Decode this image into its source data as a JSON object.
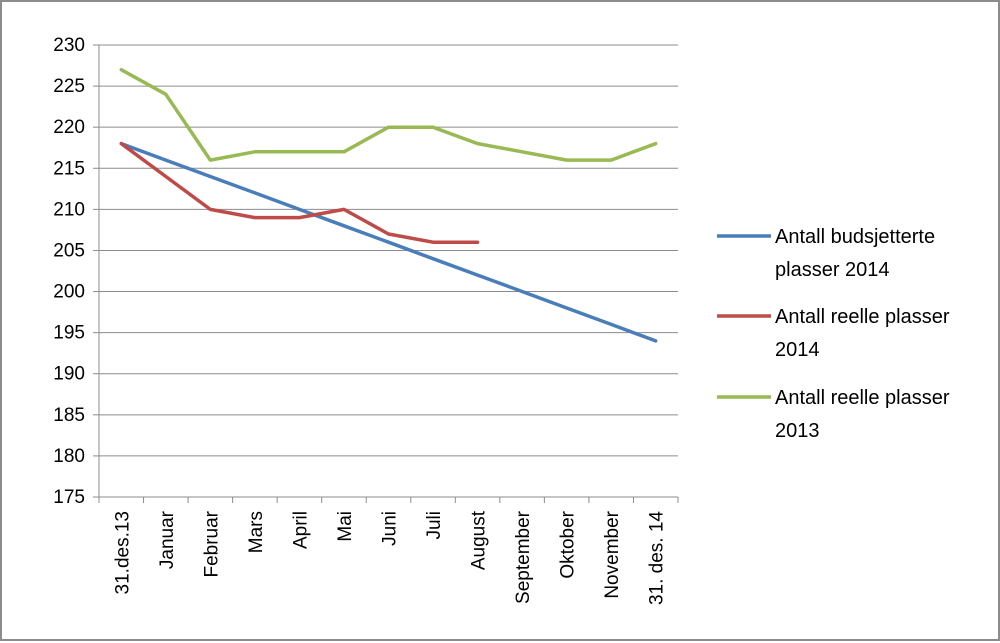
{
  "chart_data": {
    "type": "line",
    "title": "",
    "xlabel": "",
    "ylabel": "",
    "categories": [
      "31.des.13",
      "Januar",
      "Februar",
      "Mars",
      "April",
      "Mai",
      "Juni",
      "Juli",
      "August",
      "September",
      "Oktober",
      "November",
      "31. des. 14"
    ],
    "ylim": [
      175,
      230
    ],
    "yticks": [
      175,
      180,
      185,
      190,
      195,
      200,
      205,
      210,
      215,
      220,
      225,
      230
    ],
    "grid": true,
    "legend_position": "right",
    "series": [
      {
        "name": "Antall budsjetterte plasser  2014",
        "legend_lines": [
          "Antall budsjetterte",
          "plasser  2014"
        ],
        "color": "#4a7ebb",
        "values": [
          218,
          216,
          214,
          212,
          210,
          208,
          206,
          204,
          202,
          200,
          198,
          196,
          194
        ]
      },
      {
        "name": "Antall reelle plasser 2014",
        "legend_lines": [
          "Antall reelle plasser",
          "2014"
        ],
        "color": "#be4b48",
        "values": [
          218,
          214,
          210,
          209,
          209,
          210,
          207,
          206,
          206,
          null,
          null,
          null,
          null
        ]
      },
      {
        "name": "Antall reelle plasser 2013",
        "legend_lines": [
          "Antall reelle plasser",
          "2013"
        ],
        "color": "#98b954",
        "values": [
          227,
          224,
          216,
          217,
          217,
          217,
          220,
          220,
          218,
          217,
          216,
          216,
          218
        ]
      }
    ]
  }
}
